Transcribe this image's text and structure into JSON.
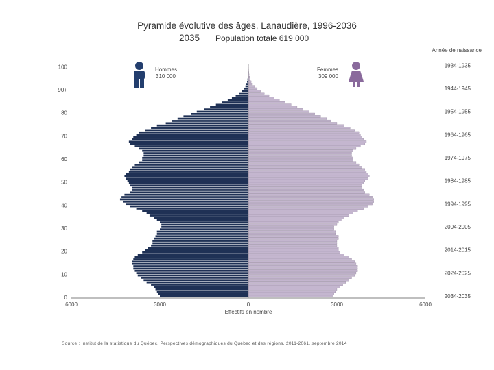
{
  "header": {
    "title": "Pyramide évolutive des âges, Lanaudière, 1996-2036",
    "year": "2035",
    "total": "Population totale 619 000"
  },
  "legend": {
    "men_label": "Hommes",
    "men_value": "310 000",
    "women_label": "Femmes",
    "women_value": "309 000",
    "men_color": "#1f3155",
    "women_color": "#c4b6cf",
    "men_icon_color": "#233e6e",
    "women_icon_color": "#8a6a9c"
  },
  "footer": {
    "source": "Source : Institut de la statistique du Québec, Perspectives démographiques du Québec et des régions, 2011-2061, septembre 2014"
  },
  "chart_data": {
    "type": "population-pyramid",
    "title": "Pyramide évolutive des âges, Lanaudière, 1996-2036",
    "year": "2035",
    "xlabel": "Effectifs en nombre",
    "x_ticks": [
      "6000",
      "3000",
      "0",
      "3000",
      "6000"
    ],
    "xlim": [
      -6000,
      6000
    ],
    "age_labels": [
      "0",
      "10",
      "20",
      "30",
      "40",
      "50",
      "60",
      "70",
      "80",
      "90+",
      "100"
    ],
    "birth_year_title": "Année de naissance",
    "birth_year_labels": [
      "2034-2035",
      "2024-2025",
      "2014-2015",
      "2004-2005",
      "1994-1995",
      "1984-1985",
      "1974-1975",
      "1964-1965",
      "1954-1955",
      "1944-1945",
      "1934-1935"
    ],
    "ages": [
      0,
      1,
      2,
      3,
      4,
      5,
      6,
      7,
      8,
      9,
      10,
      11,
      12,
      13,
      14,
      15,
      16,
      17,
      18,
      19,
      20,
      21,
      22,
      23,
      24,
      25,
      26,
      27,
      28,
      29,
      30,
      31,
      32,
      33,
      34,
      35,
      36,
      37,
      38,
      39,
      40,
      41,
      42,
      43,
      44,
      45,
      46,
      47,
      48,
      49,
      50,
      51,
      52,
      53,
      54,
      55,
      56,
      57,
      58,
      59,
      60,
      61,
      62,
      63,
      64,
      65,
      66,
      67,
      68,
      69,
      70,
      71,
      72,
      73,
      74,
      75,
      76,
      77,
      78,
      79,
      80,
      81,
      82,
      83,
      84,
      85,
      86,
      87,
      88,
      89,
      90,
      91,
      92,
      93,
      94,
      95,
      96,
      97,
      98,
      99,
      100
    ],
    "series": [
      {
        "name": "Hommes",
        "values": [
          3000,
          3050,
          3100,
          3150,
          3200,
          3300,
          3450,
          3550,
          3650,
          3750,
          3800,
          3850,
          3900,
          3900,
          3950,
          3950,
          3900,
          3850,
          3750,
          3600,
          3500,
          3400,
          3300,
          3250,
          3250,
          3200,
          3150,
          3100,
          3100,
          3000,
          2950,
          2950,
          3000,
          3100,
          3200,
          3350,
          3450,
          3600,
          3800,
          4000,
          4150,
          4250,
          4350,
          4300,
          4200,
          4000,
          3950,
          3950,
          4000,
          4050,
          4100,
          4150,
          4200,
          4150,
          4050,
          4000,
          3950,
          3850,
          3700,
          3600,
          3600,
          3550,
          3550,
          3600,
          3700,
          3850,
          4000,
          4050,
          3950,
          3900,
          3800,
          3700,
          3500,
          3300,
          3100,
          2800,
          2600,
          2400,
          2200,
          1950,
          1750,
          1500,
          1300,
          1100,
          900,
          700,
          560,
          430,
          320,
          220,
          150,
          100,
          70,
          45,
          30,
          20,
          12,
          8,
          5,
          3,
          2
        ]
      },
      {
        "name": "Femmes",
        "values": [
          2850,
          2900,
          2950,
          3000,
          3100,
          3200,
          3300,
          3400,
          3500,
          3600,
          3650,
          3700,
          3700,
          3700,
          3650,
          3600,
          3500,
          3400,
          3250,
          3100,
          3050,
          3050,
          3000,
          3000,
          3000,
          3050,
          3050,
          2950,
          2950,
          2900,
          2900,
          3000,
          3050,
          3150,
          3250,
          3400,
          3550,
          3700,
          3900,
          4050,
          4200,
          4250,
          4250,
          4200,
          4100,
          3950,
          3900,
          3850,
          3850,
          3900,
          3950,
          4050,
          4100,
          4050,
          4000,
          3950,
          3850,
          3750,
          3650,
          3550,
          3550,
          3500,
          3500,
          3550,
          3650,
          3800,
          3950,
          4000,
          3900,
          3850,
          3800,
          3750,
          3600,
          3450,
          3250,
          3000,
          2800,
          2650,
          2450,
          2250,
          2050,
          1850,
          1650,
          1450,
          1250,
          1050,
          880,
          700,
          540,
          410,
          300,
          210,
          140,
          95,
          60,
          40,
          25,
          15,
          10,
          5,
          3
        ]
      }
    ]
  }
}
